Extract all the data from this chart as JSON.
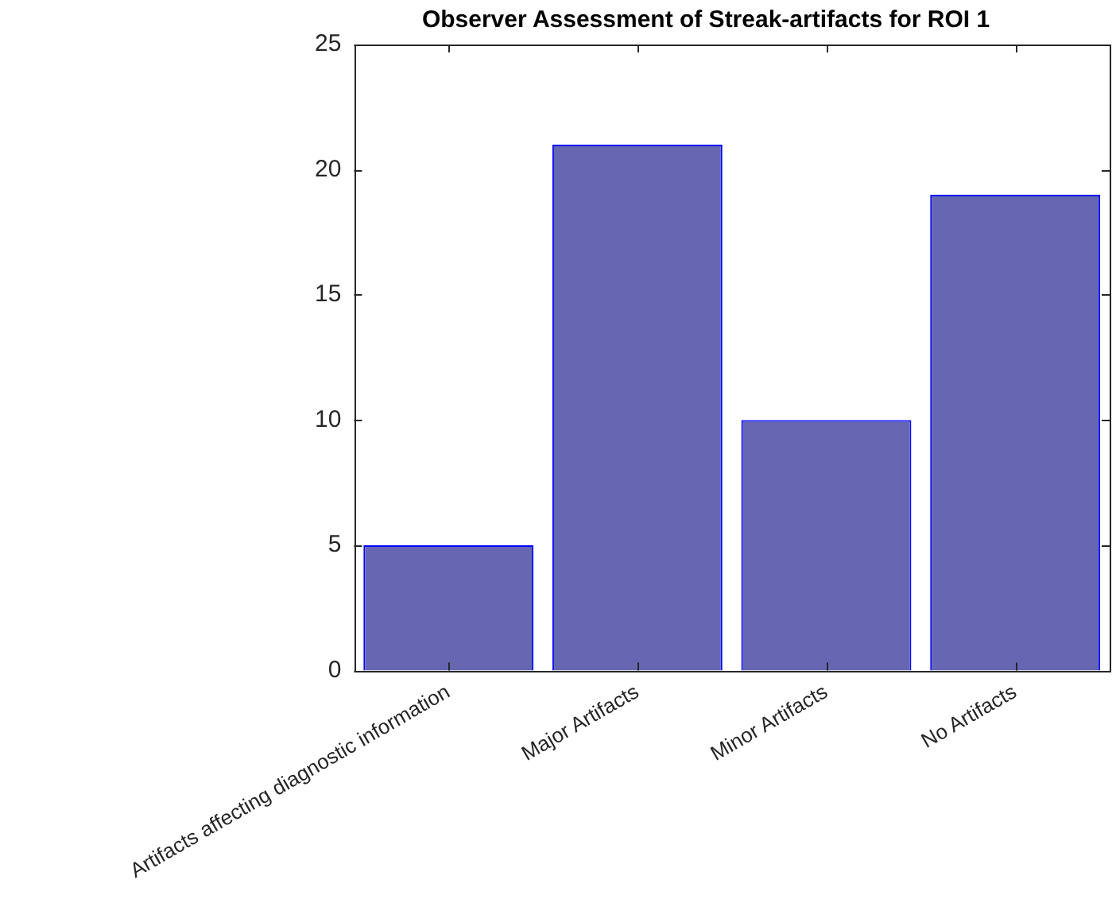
{
  "chart_data": {
    "type": "bar",
    "title": "Observer Assessment of Streak-artifacts for ROI 1",
    "categories": [
      "Artifacts affecting diagnostic information",
      "Major Artifacts",
      "Minor Artifacts",
      "No Artifacts"
    ],
    "values": [
      5,
      21,
      10,
      19
    ],
    "color": "#6666b3",
    "ylim": [
      0,
      25
    ],
    "yticks": [
      0,
      5,
      10,
      15,
      20,
      25
    ],
    "grid": false,
    "legend": false
  }
}
